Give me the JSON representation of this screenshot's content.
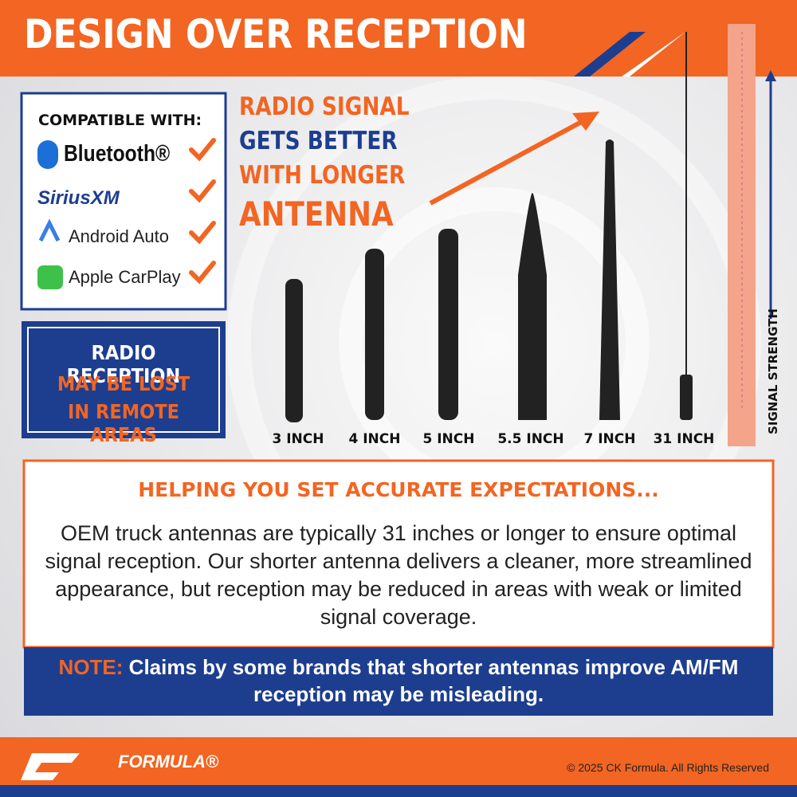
{
  "header": {
    "title": "DESIGN OVER RECEPTION"
  },
  "compatible": {
    "heading": "COMPATIBLE WITH:",
    "items": [
      "Bluetooth®",
      "SiriusXM",
      "Android Auto",
      "Apple CarPlay"
    ]
  },
  "warning": {
    "lines": [
      "RADIO RECEPTION",
      "MAY BE LOST",
      "IN REMOTE AREAS"
    ]
  },
  "headline": {
    "lines": [
      "RADIO SIGNAL",
      "GETS BETTER",
      "WITH LONGER",
      "ANTENNA"
    ]
  },
  "antennas": {
    "labels": [
      "3 INCH",
      "4 INCH",
      "5 INCH",
      "5.5 INCH",
      "7 INCH",
      "31 INCH"
    ]
  },
  "signal_axis": {
    "label": "SIGNAL STRENGTH"
  },
  "info": {
    "heading": "HELPING YOU SET ACCURATE EXPECTATIONS...",
    "body": "OEM truck antennas are typically 31 inches or longer to ensure optimal signal reception. Our shorter antenna delivers a cleaner, more streamlined appearance, but reception may be reduced in areas with weak or limited signal coverage.",
    "note_label": "NOTE:",
    "note": "Claims by some brands that shorter antennas improve AM/FM reception may be misleading."
  },
  "footer": {
    "logo": "FORMULA®",
    "copyright": "© 2025 CK Formula. All Rights Reserved"
  }
}
